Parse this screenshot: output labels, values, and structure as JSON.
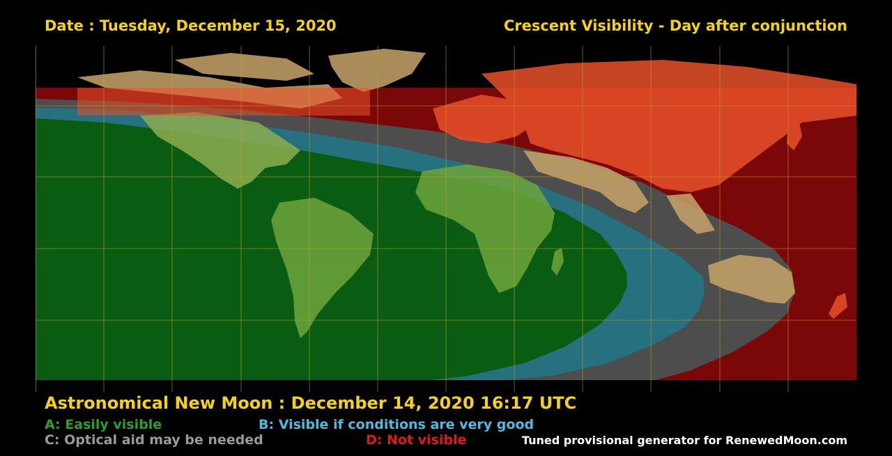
{
  "header": {
    "date_title": "Date : Tuesday, December 15, 2020",
    "visibility_title": "Crescent Visibility - Day after conjunction"
  },
  "map": {
    "projection": "equirectangular world map",
    "grid_color": "#b8a21a",
    "zones": {
      "A": {
        "label": "A: Easily visible",
        "color": "#0a5c12",
        "label_color": "#2aa02a"
      },
      "B": {
        "label": "B: Visible if conditions are very good",
        "color": "#27707f",
        "label_color": "#4fbbe0"
      },
      "C": {
        "label": "C: Optical aid may be needed",
        "color": "#4d4d4d",
        "label_color": "#9a9a9a"
      },
      "D": {
        "label": "D: Not visible",
        "color": "#7a0808",
        "label_color": "#e01a1a"
      }
    },
    "land_color": "#c8a46a",
    "land_on_red_color": "#e8502a"
  },
  "footer": {
    "new_moon": "Astronomical New Moon : December 14, 2020 16:17 UTC",
    "credit": "Tuned provisional generator for RenewedMoon.com"
  }
}
